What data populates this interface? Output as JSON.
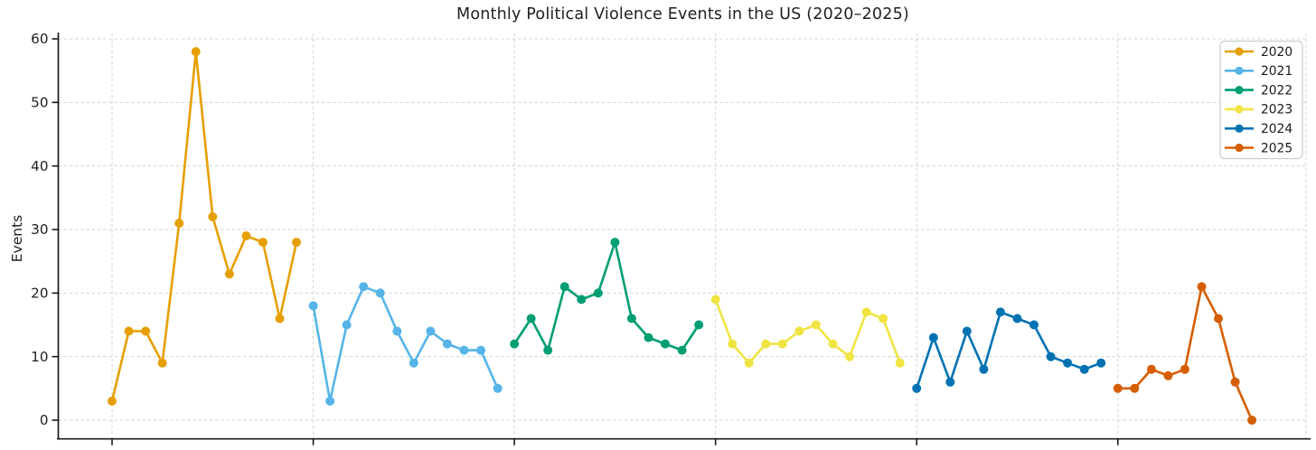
{
  "chart_data": {
    "type": "line",
    "title": "Monthly Political Violence Events in the US (2020–2025)",
    "xlabel": "",
    "ylabel": "Events",
    "grid": true,
    "grid_style": "dashed",
    "legend_position": "upper right",
    "y_ticks": [
      0,
      10,
      20,
      30,
      40,
      50,
      60
    ],
    "ylim": [
      -3,
      61
    ],
    "x_unit": "months since Jan 2020, one point per month",
    "x_year_tick_indices": [
      0,
      12,
      24,
      36,
      48,
      60
    ],
    "axis_color": "#1a1a1a",
    "grid_color": "#d3d3d3",
    "series": [
      {
        "name": "2020",
        "color": "#E69F00",
        "start_index": 0,
        "values": [
          3,
          14,
          14,
          9,
          31,
          58,
          32,
          23,
          29,
          28,
          16,
          28
        ]
      },
      {
        "name": "2021",
        "color": "#56B4E9",
        "start_index": 12,
        "values": [
          18,
          3,
          15,
          21,
          20,
          14,
          9,
          14,
          12,
          11,
          11,
          5
        ]
      },
      {
        "name": "2022",
        "color": "#009E73",
        "start_index": 24,
        "values": [
          12,
          16,
          11,
          21,
          19,
          20,
          28,
          16,
          13,
          12,
          11,
          15
        ]
      },
      {
        "name": "2023",
        "color": "#F0E442",
        "start_index": 36,
        "values": [
          19,
          12,
          9,
          12,
          12,
          14,
          15,
          12,
          10,
          17,
          16,
          9
        ]
      },
      {
        "name": "2024",
        "color": "#0072B2",
        "start_index": 48,
        "values": [
          5,
          13,
          6,
          14,
          8,
          17,
          16,
          15,
          10,
          9,
          8,
          9
        ]
      },
      {
        "name": "2025",
        "color": "#D55E00",
        "start_index": 60,
        "values": [
          5,
          5,
          8,
          7,
          8,
          21,
          16,
          6,
          0
        ]
      }
    ]
  }
}
